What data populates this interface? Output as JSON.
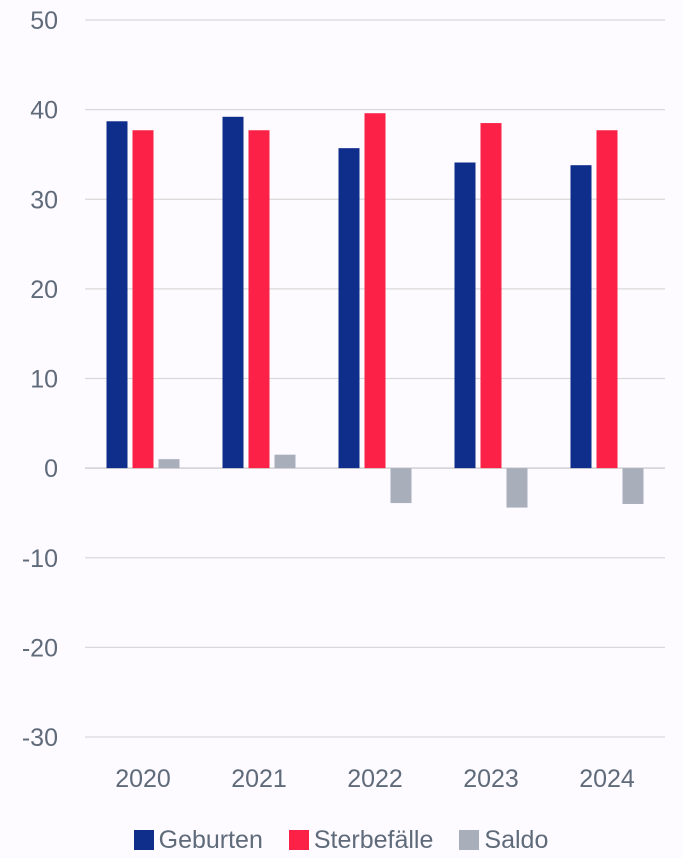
{
  "chart_data": {
    "type": "bar",
    "categories": [
      "2020",
      "2021",
      "2022",
      "2023",
      "2024"
    ],
    "series": [
      {
        "name": "Geburten",
        "color": "#0f2d8a",
        "values": [
          38.7,
          39.2,
          35.7,
          34.1,
          33.8
        ]
      },
      {
        "name": "Sterbefälle",
        "color": "#fb2147",
        "values": [
          37.7,
          37.7,
          39.6,
          38.5,
          37.7
        ]
      },
      {
        "name": "Saldo",
        "color": "#a9aebb",
        "values": [
          1.0,
          1.5,
          -3.9,
          -4.4,
          -4.0
        ]
      }
    ],
    "ylim": [
      -30,
      50
    ],
    "yticks": [
      50,
      40,
      30,
      20,
      10,
      0,
      -10,
      -20,
      -30
    ],
    "grid": true,
    "legend_position": "bottom"
  }
}
